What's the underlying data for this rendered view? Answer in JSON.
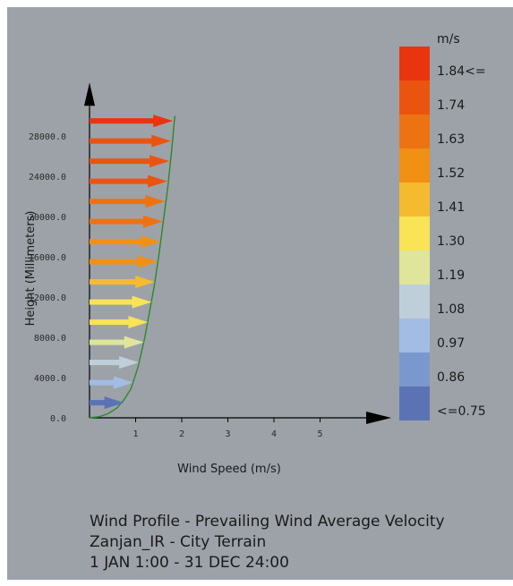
{
  "chart_data": {
    "type": "wind-profile",
    "title_lines": [
      "Wind Profile  - Prevailing Wind Average Velocity",
      "Zanjan_IR - City Terrain",
      "1 JAN 1:00 - 31 DEC 24:00"
    ],
    "xlabel": "Wind Speed (m/s)",
    "ylabel": "Height (Millimeters)",
    "xlim": [
      0,
      6
    ],
    "ylim": [
      0,
      31000
    ],
    "x_ticks": [
      "1",
      "2",
      "3",
      "4",
      "5"
    ],
    "x_tick_values": [
      1,
      2,
      3,
      4,
      5
    ],
    "y_ticks": [
      "0.0",
      "4000.0",
      "8000.0",
      "12000.0",
      "16000.0",
      "20000.0",
      "24000.0",
      "28000.0"
    ],
    "y_tick_values": [
      0,
      4000,
      8000,
      12000,
      16000,
      20000,
      24000,
      28000
    ],
    "arrows": [
      {
        "height": 1500,
        "speed": 0.75
      },
      {
        "height": 3500,
        "speed": 0.95
      },
      {
        "height": 5500,
        "speed": 1.07
      },
      {
        "height": 7500,
        "speed": 1.18
      },
      {
        "height": 9500,
        "speed": 1.27
      },
      {
        "height": 11500,
        "speed": 1.35
      },
      {
        "height": 13500,
        "speed": 1.42
      },
      {
        "height": 15500,
        "speed": 1.48
      },
      {
        "height": 17500,
        "speed": 1.54
      },
      {
        "height": 19500,
        "speed": 1.59
      },
      {
        "height": 21500,
        "speed": 1.64
      },
      {
        "height": 23500,
        "speed": 1.69
      },
      {
        "height": 25500,
        "speed": 1.73
      },
      {
        "height": 27500,
        "speed": 1.77
      },
      {
        "height": 29500,
        "speed": 1.81
      }
    ],
    "profile_curve": [
      [
        0,
        0
      ],
      [
        0.2,
        100
      ],
      [
        0.4,
        400
      ],
      [
        0.6,
        1000
      ],
      [
        0.75,
        1800
      ],
      [
        0.9,
        2900
      ],
      [
        1.05,
        5000
      ],
      [
        1.2,
        8000
      ],
      [
        1.3,
        10500
      ],
      [
        1.4,
        13000
      ],
      [
        1.5,
        16000
      ],
      [
        1.6,
        19500
      ],
      [
        1.7,
        23000
      ],
      [
        1.78,
        26500
      ],
      [
        1.85,
        30000
      ]
    ],
    "legend": {
      "unit": "m/s",
      "labels": [
        "1.84<=",
        "1.74",
        "1.63",
        "1.52",
        "1.41",
        "1.30",
        "1.19",
        "1.08",
        "0.97",
        "0.86",
        "<=0.75"
      ],
      "colors": [
        "#e8350f",
        "#ea5410",
        "#ed7212",
        "#f09014",
        "#f4bb30",
        "#f9e356",
        "#dfe59a",
        "#bfcfd9",
        "#a3bce4",
        "#7a98cd",
        "#5b73b5"
      ]
    },
    "curve_color": "#2a8a2a",
    "axis_color": "#000000"
  }
}
